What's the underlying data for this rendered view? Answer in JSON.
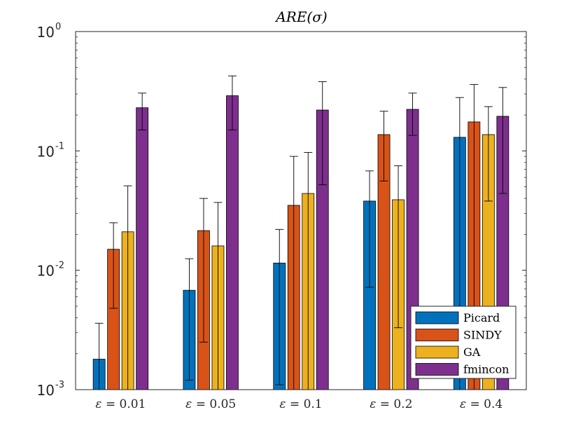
{
  "chart_data": {
    "type": "bar",
    "title": "ARE(σ)",
    "yscale": "log",
    "ylim": [
      0.001,
      1
    ],
    "yticks": [
      {
        "value": 0.001,
        "base": "10",
        "exp": "-3"
      },
      {
        "value": 0.01,
        "base": "10",
        "exp": "-2"
      },
      {
        "value": 0.1,
        "base": "10",
        "exp": "-1"
      },
      {
        "value": 1,
        "base": "10",
        "exp": "0"
      }
    ],
    "categories": [
      {
        "sym": "ε",
        "rest": " = 0.01"
      },
      {
        "sym": "ε",
        "rest": " = 0.05"
      },
      {
        "sym": "ε",
        "rest": " = 0.1"
      },
      {
        "sym": "ε",
        "rest": " = 0.2"
      },
      {
        "sym": "ε",
        "rest": " = 0.4"
      }
    ],
    "series": [
      {
        "name": "Picard",
        "color": "#0072BD",
        "values": [
          0.0018,
          0.0068,
          0.0115,
          0.038,
          0.13
        ],
        "err_low": [
          0.001,
          0.0012,
          0.0011,
          0.0072,
          0.001
        ],
        "err_high": [
          0.0036,
          0.0125,
          0.022,
          0.068,
          0.28
        ]
      },
      {
        "name": "SINDY",
        "color": "#D95319",
        "values": [
          0.015,
          0.0215,
          0.035,
          0.137,
          0.175
        ],
        "err_low": [
          0.0048,
          0.0025,
          0.001,
          0.056,
          0.001
        ],
        "err_high": [
          0.025,
          0.04,
          0.09,
          0.215,
          0.36
        ]
      },
      {
        "name": "GA",
        "color": "#EDB120",
        "values": [
          0.021,
          0.016,
          0.044,
          0.039,
          0.137
        ],
        "err_low": [
          0.001,
          0.001,
          0.001,
          0.0033,
          0.038
        ],
        "err_high": [
          0.051,
          0.037,
          0.097,
          0.075,
          0.235
        ]
      },
      {
        "name": "fmincon",
        "color": "#7E2F8E",
        "values": [
          0.23,
          0.29,
          0.22,
          0.223,
          0.195
        ],
        "err_low": [
          0.15,
          0.15,
          0.052,
          0.135,
          0.044
        ],
        "err_high": [
          0.305,
          0.425,
          0.38,
          0.305,
          0.34
        ]
      }
    ],
    "legend_position": "bottom-right"
  }
}
